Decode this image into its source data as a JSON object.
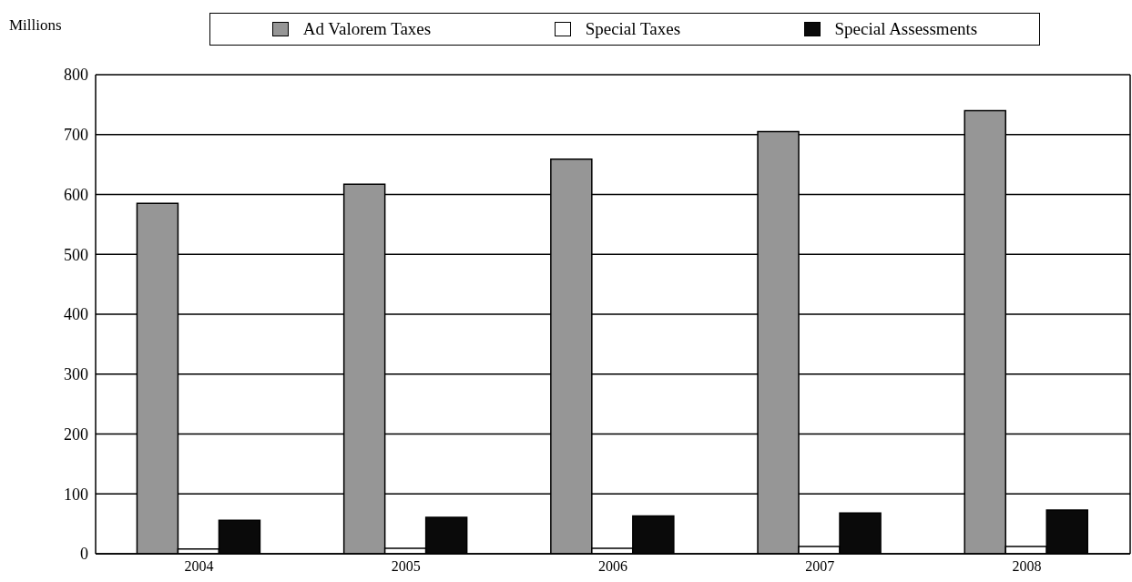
{
  "chart_data": {
    "type": "bar",
    "ylabel": "Millions",
    "categories": [
      "2004",
      "2005",
      "2006",
      "2007",
      "2008"
    ],
    "series": [
      {
        "name": "Ad Valorem Taxes",
        "color": "#969696",
        "values": [
          585,
          617,
          659,
          705,
          740
        ]
      },
      {
        "name": "Special Taxes",
        "color": "#ffffff",
        "values": [
          8,
          9,
          9,
          12,
          12
        ]
      },
      {
        "name": "Special Assessments",
        "color": "#0a0a0a",
        "values": [
          56,
          61,
          63,
          68,
          73
        ]
      }
    ],
    "ylim": [
      0,
      800
    ],
    "yticks": [
      0,
      100,
      200,
      300,
      400,
      500,
      600,
      700,
      800
    ],
    "grid": "y",
    "legend": "top"
  }
}
